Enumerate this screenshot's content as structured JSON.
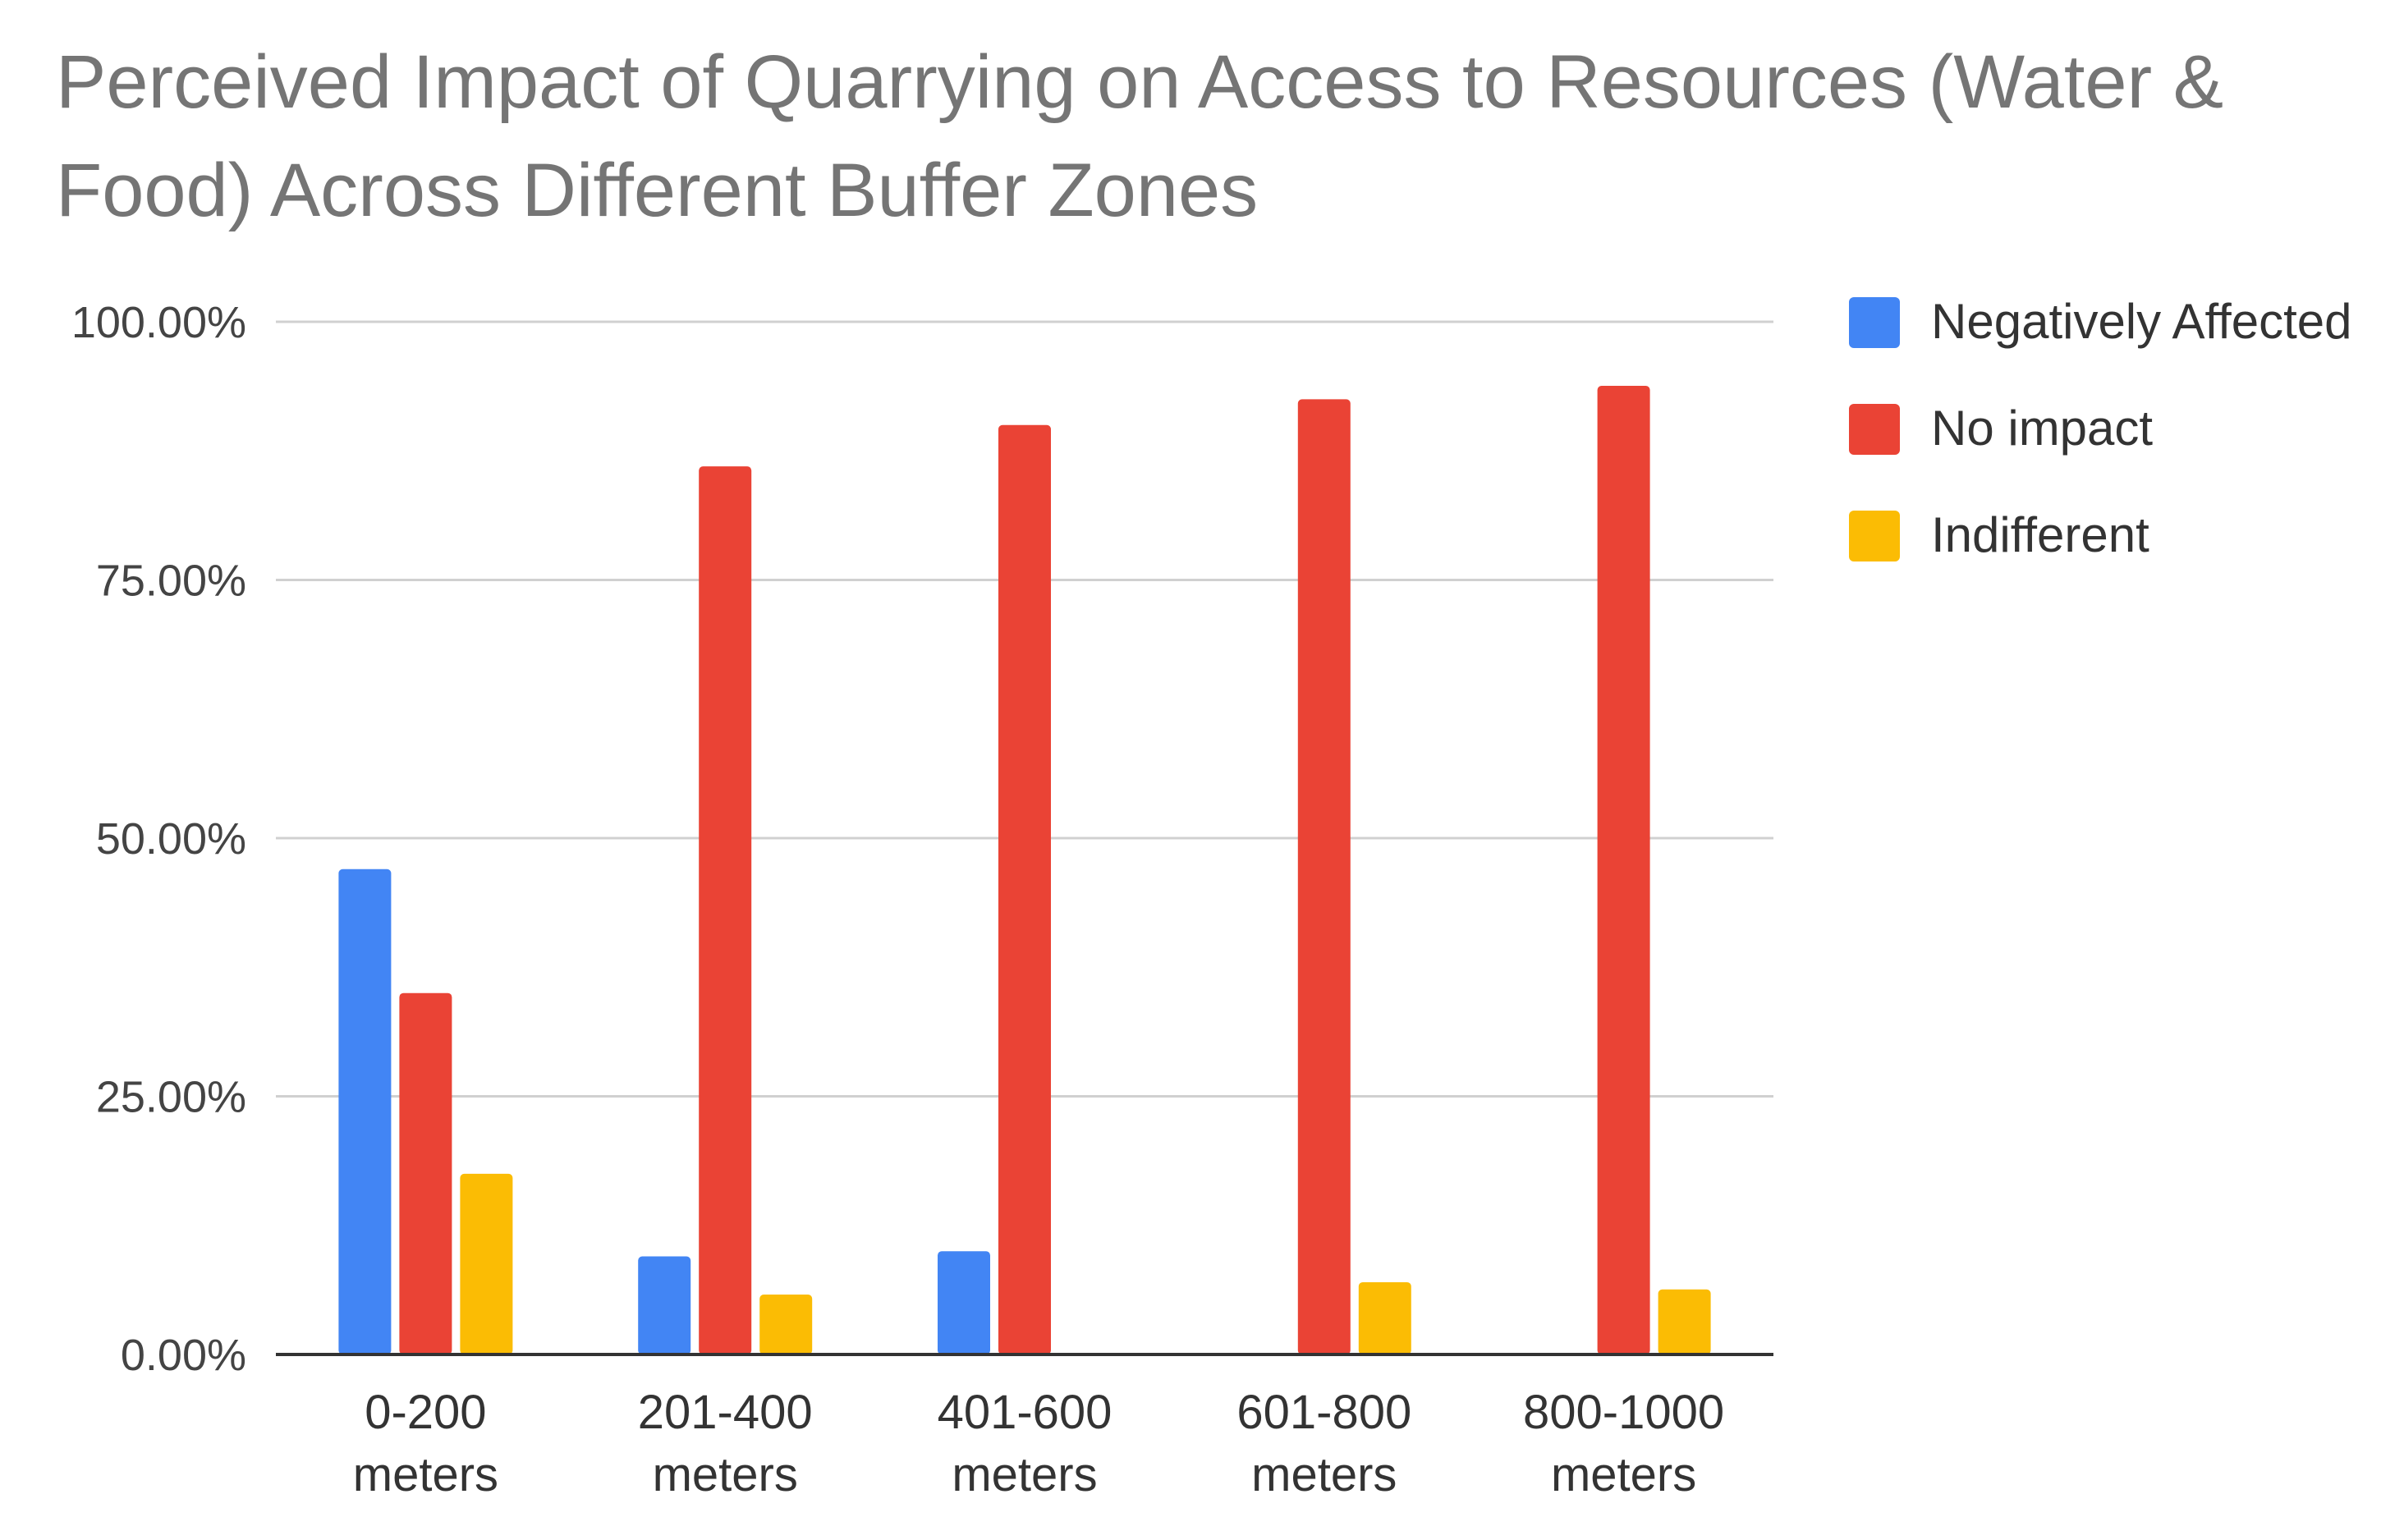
{
  "chart_data": {
    "type": "bar",
    "title": "Perceived Impact of Quarrying on Access to Resources (Water & Food) Across Different Buffer Zones",
    "xlabel": "",
    "ylabel": "",
    "categories": [
      [
        "0-200",
        "meters"
      ],
      [
        "201-400",
        "meters"
      ],
      [
        "401-600",
        "meters"
      ],
      [
        "601-800",
        "meters"
      ],
      [
        "800-1000",
        "meters"
      ]
    ],
    "series": [
      {
        "name": "Negatively Affected",
        "color": "#4285F4",
        "values": [
          47.0,
          9.5,
          10.0,
          0,
          0
        ]
      },
      {
        "name": "No impact",
        "color": "#EA4335",
        "values": [
          35.0,
          86.0,
          90.0,
          92.5,
          93.8
        ]
      },
      {
        "name": "Indifferent",
        "color": "#FBBC04",
        "values": [
          17.5,
          5.8,
          0,
          7.0,
          6.3
        ]
      }
    ],
    "ylim": [
      0,
      100
    ],
    "yticks": [
      "0.00%",
      "25.00%",
      "50.00%",
      "75.00%",
      "100.00%"
    ],
    "ytick_values": [
      0,
      25,
      50,
      75,
      100
    ],
    "grid": true,
    "legend_position": "right"
  }
}
